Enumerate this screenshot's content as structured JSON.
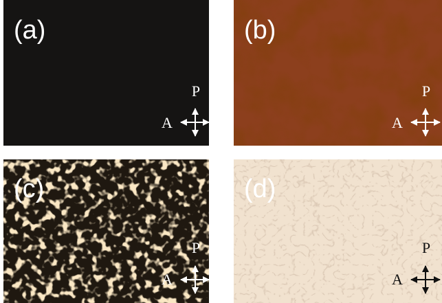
{
  "panels": [
    {
      "label": "(a)",
      "polarizer": "P",
      "analyzer": "A"
    },
    {
      "label": "(b)",
      "polarizer": "P",
      "analyzer": "A"
    },
    {
      "label": "(c)",
      "polarizer": "P",
      "analyzer": "A"
    },
    {
      "label": "(d)",
      "polarizer": "P",
      "analyzer": "A"
    }
  ]
}
